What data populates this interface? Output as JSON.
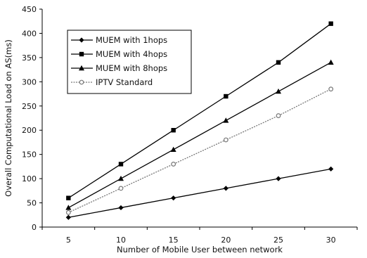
{
  "chart_data": {
    "type": "line",
    "xlabel": "Number of Mobile User between network",
    "ylabel": "Overall Computational Load on AS(ms)",
    "x": [
      5,
      10,
      15,
      20,
      25,
      30
    ],
    "xlim": [
      2.5,
      32.5
    ],
    "ylim": [
      0,
      450
    ],
    "yticks": [
      0,
      50,
      100,
      150,
      200,
      250,
      300,
      350,
      400,
      450
    ],
    "grid": false,
    "legend_position": "top-left",
    "series": [
      {
        "name": "MUEM with 1hops",
        "marker": "diamond",
        "color": "#000000",
        "dashed": false,
        "values": [
          20,
          40,
          60,
          80,
          100,
          120
        ]
      },
      {
        "name": "MUEM with 4hops",
        "marker": "square",
        "color": "#000000",
        "dashed": false,
        "values": [
          60,
          130,
          200,
          270,
          340,
          420
        ]
      },
      {
        "name": "MUEM with 8hops",
        "marker": "triangle",
        "color": "#000000",
        "dashed": false,
        "values": [
          40,
          100,
          160,
          220,
          280,
          340
        ]
      },
      {
        "name": "IPTV Standard",
        "marker": "circle-open",
        "color": "#777777",
        "dashed": true,
        "values": [
          30,
          80,
          130,
          180,
          230,
          285
        ]
      }
    ]
  }
}
